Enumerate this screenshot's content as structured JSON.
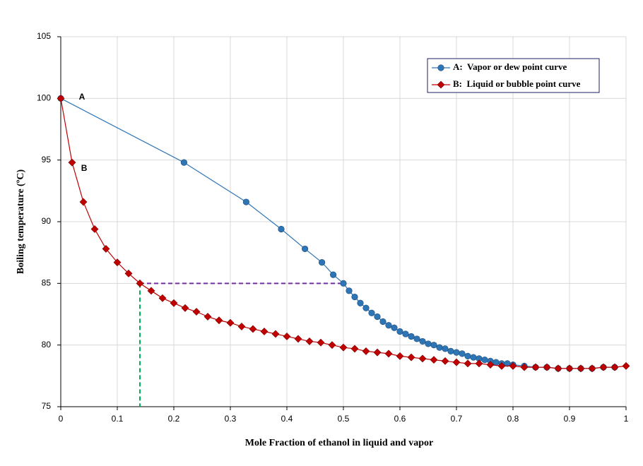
{
  "chart_data": {
    "type": "line",
    "x_label": "Mole Fraction of ethanol in liquid  and vapor",
    "y_label": "Boiling temperature  (ºC)",
    "xlim": [
      0,
      1
    ],
    "ylim": [
      75,
      105
    ],
    "xticks": [
      0,
      0.1,
      0.2,
      0.3,
      0.4,
      0.5,
      0.6,
      0.7,
      0.8,
      0.9,
      1
    ],
    "yticks": [
      75,
      80,
      85,
      90,
      95,
      100,
      105
    ],
    "grid": true,
    "legend": "upper right",
    "series": [
      {
        "name": "A:  Vapor or dew point curve",
        "color": "#2e75b6",
        "marker": "circle",
        "x": [
          0,
          0.218,
          0.328,
          0.39,
          0.432,
          0.462,
          0.482,
          0.5,
          0.51,
          0.52,
          0.53,
          0.54,
          0.55,
          0.56,
          0.57,
          0.58,
          0.59,
          0.6,
          0.61,
          0.62,
          0.63,
          0.64,
          0.65,
          0.66,
          0.67,
          0.68,
          0.69,
          0.7,
          0.71,
          0.72,
          0.73,
          0.74,
          0.75,
          0.76,
          0.77,
          0.78,
          0.79,
          0.8,
          0.82,
          0.84,
          0.86,
          0.88,
          0.9,
          0.92,
          0.94,
          0.96,
          0.98
        ],
        "values": [
          100,
          94.8,
          91.6,
          89.4,
          87.8,
          86.7,
          85.7,
          85.0,
          84.4,
          83.9,
          83.4,
          83.0,
          82.6,
          82.3,
          81.9,
          81.6,
          81.4,
          81.1,
          80.9,
          80.7,
          80.5,
          80.3,
          80.1,
          80.0,
          79.8,
          79.7,
          79.5,
          79.4,
          79.3,
          79.1,
          79.0,
          78.9,
          78.8,
          78.7,
          78.6,
          78.5,
          78.5,
          78.4,
          78.3,
          78.2,
          78.2,
          78.1,
          78.1,
          78.1,
          78.1,
          78.2,
          78.2
        ]
      },
      {
        "name": "B:  Liquid or bubble point curve",
        "color": "#c00000",
        "marker": "diamond",
        "x": [
          0,
          0.02,
          0.04,
          0.06,
          0.08,
          0.1,
          0.12,
          0.14,
          0.16,
          0.18,
          0.2,
          0.22,
          0.24,
          0.26,
          0.28,
          0.3,
          0.32,
          0.34,
          0.36,
          0.38,
          0.4,
          0.42,
          0.44,
          0.46,
          0.48,
          0.5,
          0.52,
          0.54,
          0.56,
          0.58,
          0.6,
          0.62,
          0.64,
          0.66,
          0.68,
          0.7,
          0.72,
          0.74,
          0.76,
          0.78,
          0.8,
          0.82,
          0.84,
          0.86,
          0.88,
          0.9,
          0.92,
          0.94,
          0.96,
          0.98,
          1
        ],
        "values": [
          100,
          94.8,
          91.6,
          89.4,
          87.8,
          86.7,
          85.8,
          85.0,
          84.4,
          83.8,
          83.4,
          83.0,
          82.7,
          82.3,
          82.0,
          81.8,
          81.5,
          81.3,
          81.1,
          80.9,
          80.7,
          80.5,
          80.3,
          80.2,
          80.0,
          79.8,
          79.7,
          79.5,
          79.4,
          79.3,
          79.1,
          79.0,
          78.9,
          78.8,
          78.7,
          78.6,
          78.5,
          78.5,
          78.4,
          78.3,
          78.3,
          78.2,
          78.2,
          78.2,
          78.1,
          78.1,
          78.1,
          78.1,
          78.2,
          78.2,
          78.3
        ]
      }
    ],
    "guides": [
      {
        "color": "#7030a0",
        "x": [
          0.14,
          0.5
        ],
        "values": [
          85,
          85
        ]
      },
      {
        "color": "#00b050",
        "x": [
          0.14,
          0.14
        ],
        "values": [
          85,
          75
        ]
      }
    ],
    "annotations": [
      {
        "text": "A",
        "x": 0.032,
        "y": 100.1
      },
      {
        "text": "B",
        "x": 0.036,
        "y": 94.3
      }
    ]
  }
}
